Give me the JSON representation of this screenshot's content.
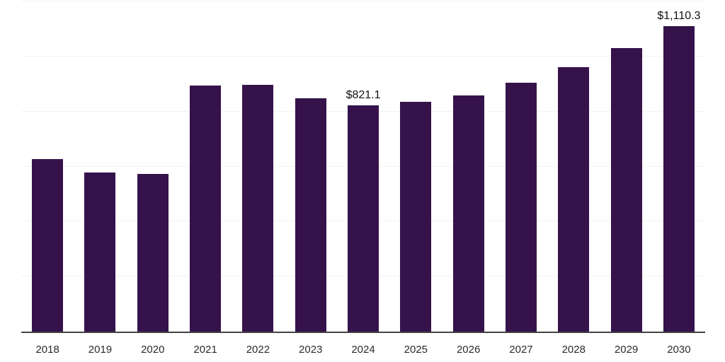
{
  "chart_data": {
    "type": "bar",
    "title": "",
    "xlabel": "",
    "ylabel": "",
    "categories": [
      "2018",
      "2019",
      "2020",
      "2021",
      "2022",
      "2023",
      "2024",
      "2025",
      "2026",
      "2027",
      "2028",
      "2029",
      "2030"
    ],
    "values": [
      628,
      577,
      572,
      895,
      898,
      849,
      821.1,
      836,
      857,
      905,
      962,
      1031,
      1110.3
    ],
    "bar_labels": [
      "",
      "",
      "",
      "",
      "",
      "",
      "$821.1",
      "",
      "",
      "",
      "",
      "",
      "$1,110.3"
    ],
    "ylim": [
      0,
      1200
    ],
    "gridline_step": 200,
    "grid": true,
    "legend": false,
    "y_axis_labels_visible": false,
    "colors": {
      "bar": "#36124b",
      "axis_line": "#424242",
      "gridline": "#f2f2f2",
      "tick_label": "#2b2b2b",
      "data_label": "#111111",
      "background": "#ffffff"
    }
  }
}
